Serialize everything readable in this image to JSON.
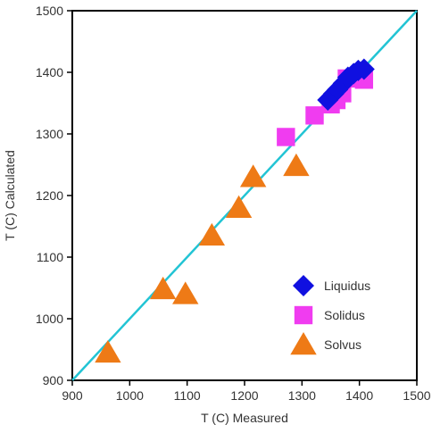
{
  "chart_data": {
    "type": "scatter",
    "xlabel": "T (C) Measured",
    "ylabel": "T (C) Calculated",
    "xlim": [
      900,
      1500
    ],
    "ylim": [
      900,
      1500
    ],
    "x_ticks": [
      "900",
      "1000",
      "1100",
      "1200",
      "1300",
      "1400",
      "1500"
    ],
    "y_ticks": [
      "900",
      "1000",
      "1100",
      "1200",
      "1300",
      "1400",
      "1500"
    ],
    "reference_line": {
      "type": "1:1",
      "from": [
        900,
        900
      ],
      "to": [
        1500,
        1500
      ],
      "color": "#22c4d4"
    },
    "legend_position": "lower-right",
    "series": [
      {
        "name": "Liquidus",
        "marker": "diamond",
        "color": "#1010e0",
        "points": [
          [
            1345,
            1355
          ],
          [
            1355,
            1365
          ],
          [
            1362,
            1372
          ],
          [
            1372,
            1382
          ],
          [
            1380,
            1392
          ],
          [
            1390,
            1398
          ],
          [
            1398,
            1403
          ],
          [
            1408,
            1405
          ]
        ]
      },
      {
        "name": "Solidus",
        "marker": "square",
        "color": "#f03cf0",
        "points": [
          [
            1272,
            1295
          ],
          [
            1322,
            1330
          ],
          [
            1350,
            1348
          ],
          [
            1360,
            1355
          ],
          [
            1370,
            1366
          ],
          [
            1378,
            1390
          ],
          [
            1398,
            1393
          ],
          [
            1408,
            1388
          ]
        ]
      },
      {
        "name": "Solvus",
        "marker": "triangle",
        "color": "#ee7a16",
        "points": [
          [
            962,
            945
          ],
          [
            1058,
            1048
          ],
          [
            1097,
            1040
          ],
          [
            1143,
            1135
          ],
          [
            1190,
            1180
          ],
          [
            1215,
            1230
          ],
          [
            1290,
            1248
          ]
        ]
      }
    ]
  }
}
